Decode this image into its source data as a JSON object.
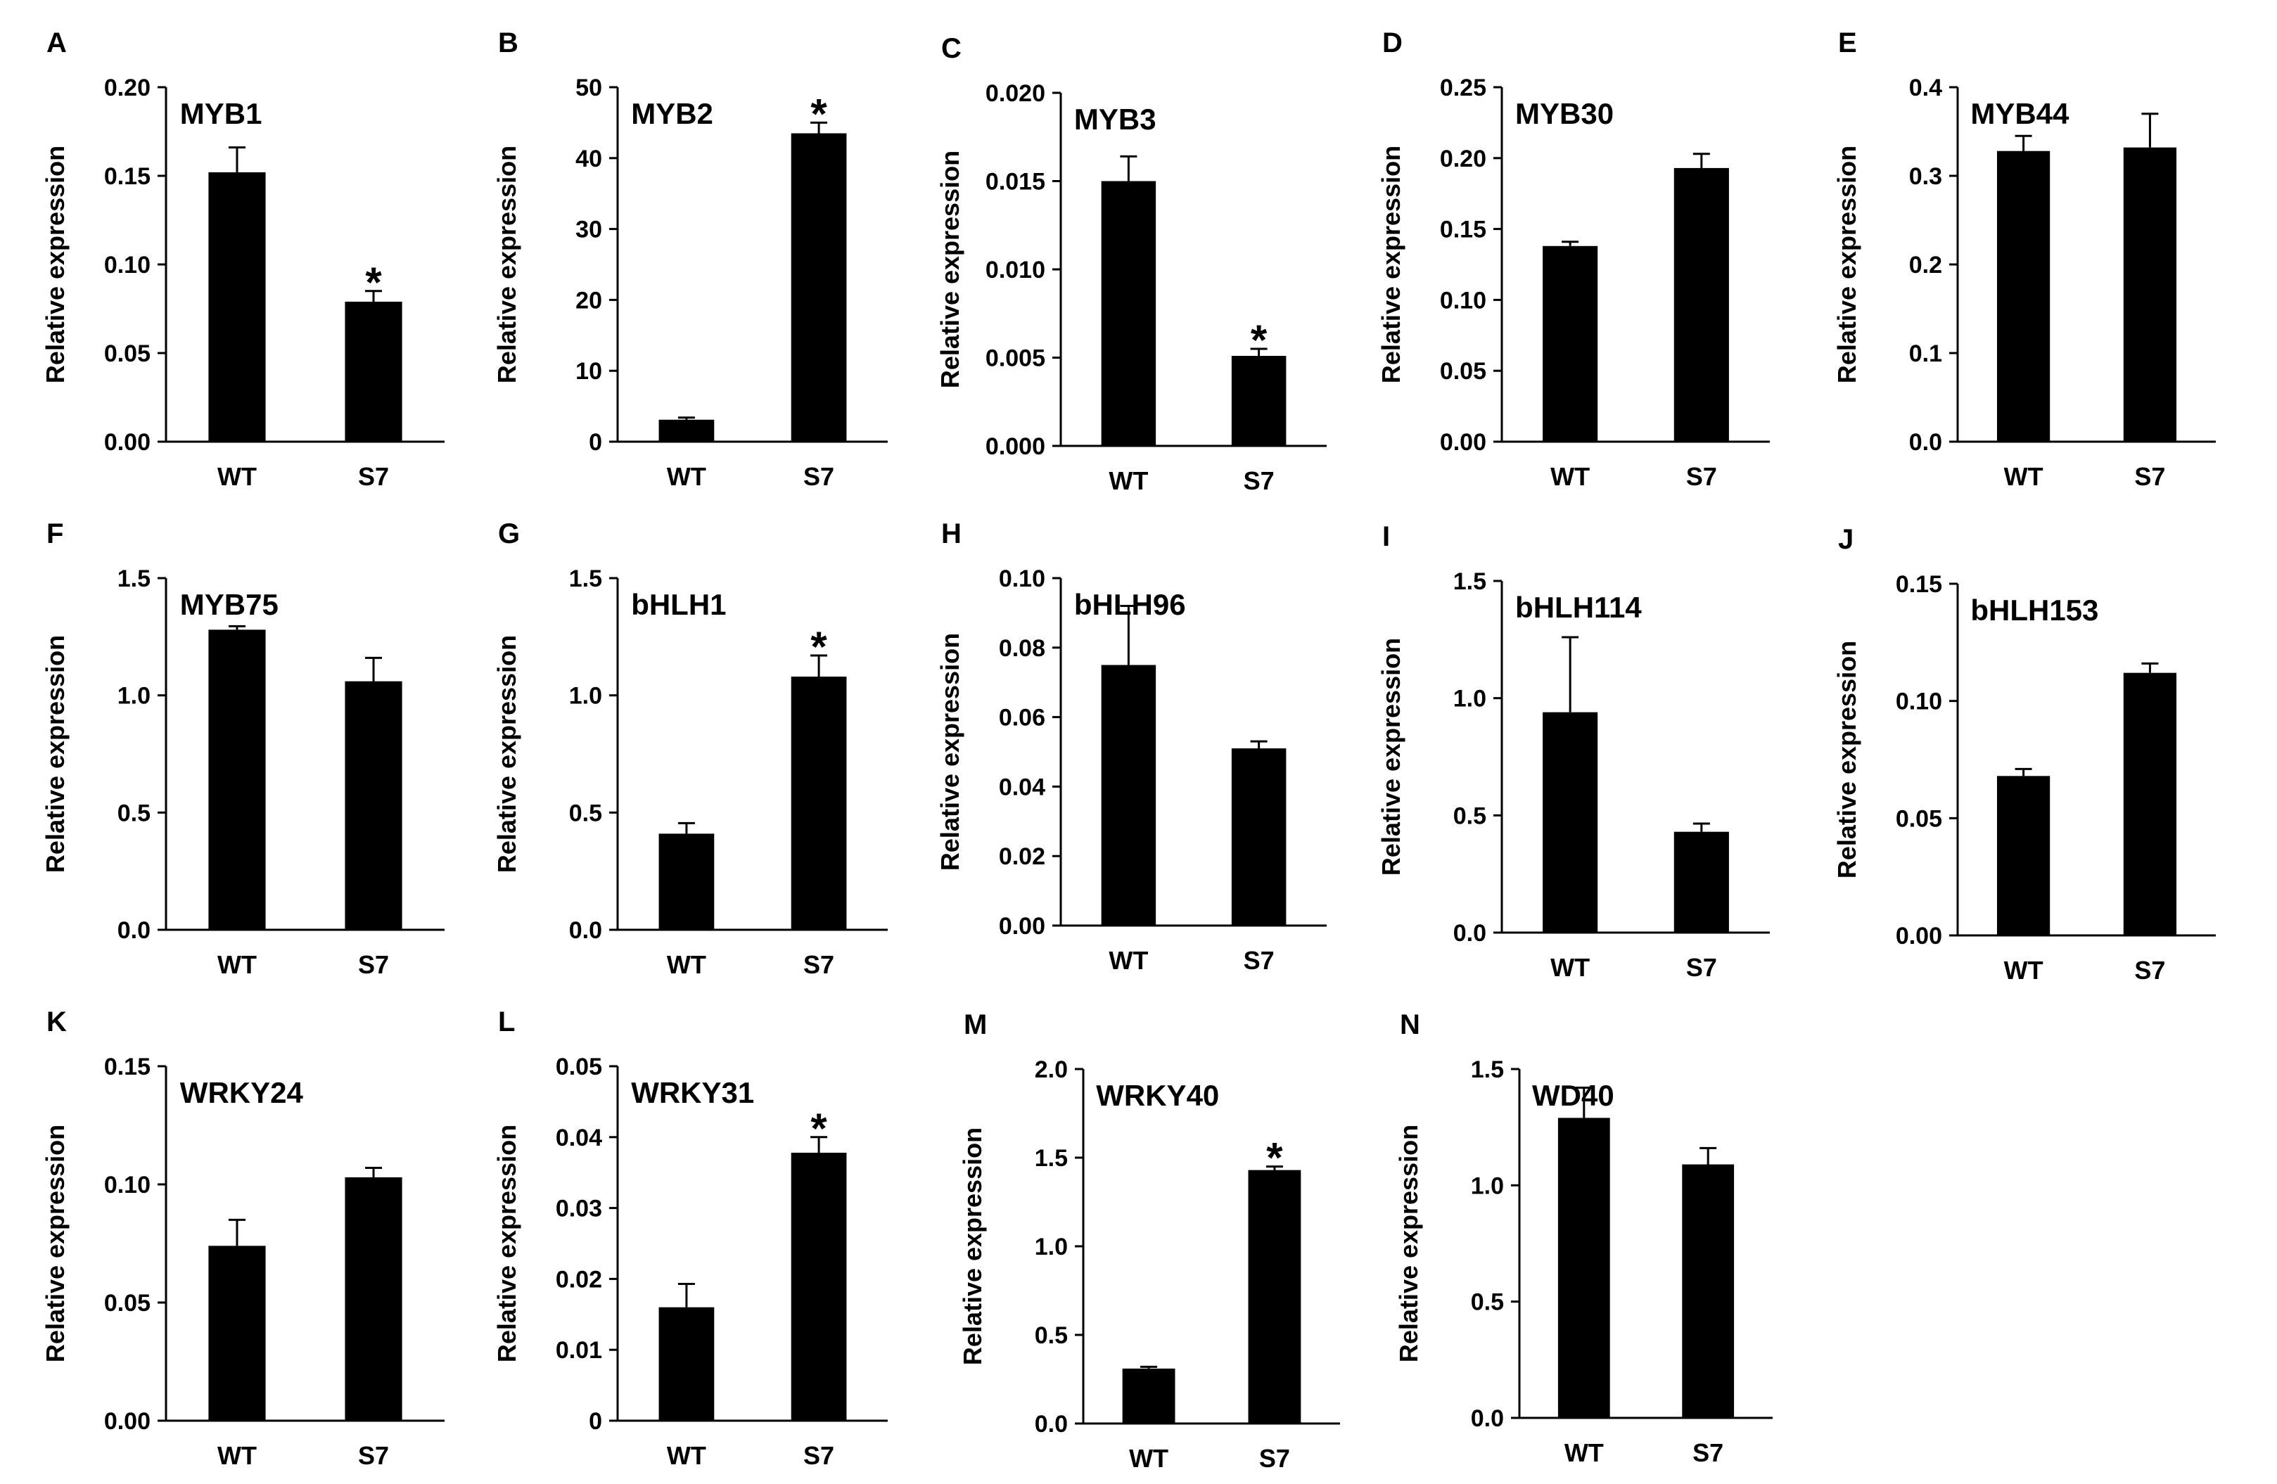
{
  "chart_data": [
    {
      "panel": "A",
      "type": "bar",
      "title": "MYB1",
      "ylabel": "Relative expression",
      "categories": [
        "WT",
        "S7"
      ],
      "values": [
        0.152,
        0.079
      ],
      "errors": [
        0.014,
        0.006
      ],
      "significant": [
        false,
        true
      ],
      "sig_marker": "*",
      "ylim": [
        0,
        0.2
      ],
      "yticks": [
        "0.00",
        "0.05",
        "0.10",
        "0.15",
        "0.20"
      ]
    },
    {
      "panel": "B",
      "type": "bar",
      "title": "MYB2",
      "ylabel": "Relative expression",
      "categories": [
        "WT",
        "S7"
      ],
      "values": [
        3.1,
        43.5
      ],
      "errors": [
        0.3,
        1.5
      ],
      "significant": [
        false,
        true
      ],
      "sig_marker": "*",
      "ylim": [
        0,
        50
      ],
      "yticks": [
        "0",
        "10",
        "20",
        "30",
        "40",
        "50"
      ]
    },
    {
      "panel": "C",
      "type": "bar",
      "title": "MYB3",
      "ylabel": "Relative expression",
      "categories": [
        "WT",
        "S7"
      ],
      "values": [
        0.015,
        0.0051
      ],
      "errors": [
        0.0014,
        0.0004
      ],
      "significant": [
        false,
        true
      ],
      "sig_marker": "*",
      "ylim": [
        0,
        0.02
      ],
      "yticks": [
        "0.000",
        "0.005",
        "0.010",
        "0.015",
        "0.020"
      ]
    },
    {
      "panel": "D",
      "type": "bar",
      "title": "MYB30",
      "ylabel": "Relative expression",
      "categories": [
        "WT",
        "S7"
      ],
      "values": [
        0.138,
        0.193
      ],
      "errors": [
        0.003,
        0.01
      ],
      "significant": [
        false,
        false
      ],
      "sig_marker": "*",
      "ylim": [
        0,
        0.25
      ],
      "yticks": [
        "0.00",
        "0.05",
        "0.10",
        "0.15",
        "0.20",
        "0.25"
      ]
    },
    {
      "panel": "E",
      "type": "bar",
      "title": "MYB44",
      "ylabel": "Relative expression",
      "categories": [
        "WT",
        "S7"
      ],
      "values": [
        0.328,
        0.332
      ],
      "errors": [
        0.017,
        0.038
      ],
      "significant": [
        false,
        false
      ],
      "sig_marker": "*",
      "ylim": [
        0,
        0.4
      ],
      "yticks": [
        "0.0",
        "0.1",
        "0.2",
        "0.3",
        "0.4"
      ]
    },
    {
      "panel": "F",
      "type": "bar",
      "title": "MYB75",
      "ylabel": "Relative expression",
      "categories": [
        "WT",
        "S7"
      ],
      "values": [
        1.28,
        1.06
      ],
      "errors": [
        0.015,
        0.1
      ],
      "significant": [
        false,
        false
      ],
      "sig_marker": "*",
      "ylim": [
        0,
        1.5
      ],
      "yticks": [
        "0.0",
        "0.5",
        "1.0",
        "1.5"
      ]
    },
    {
      "panel": "G",
      "type": "bar",
      "title": "bHLH1",
      "ylabel": "Relative expression",
      "categories": [
        "WT",
        "S7"
      ],
      "values": [
        0.41,
        1.08
      ],
      "errors": [
        0.045,
        0.09
      ],
      "significant": [
        false,
        true
      ],
      "sig_marker": "*",
      "ylim": [
        0,
        1.5
      ],
      "yticks": [
        "0.0",
        "0.5",
        "1.0",
        "1.5"
      ]
    },
    {
      "panel": "H",
      "type": "bar",
      "title": "bHLH96",
      "ylabel": "Relative expression",
      "categories": [
        "WT",
        "S7"
      ],
      "values": [
        0.075,
        0.051
      ],
      "errors": [
        0.017,
        0.002
      ],
      "significant": [
        false,
        false
      ],
      "sig_marker": "*",
      "ylim": [
        0,
        0.1
      ],
      "yticks": [
        "0.00",
        "0.02",
        "0.04",
        "0.06",
        "0.08",
        "0.10"
      ]
    },
    {
      "panel": "I",
      "type": "bar",
      "title": "bHLH114",
      "ylabel": "Relative expression",
      "categories": [
        "WT",
        "S7"
      ],
      "values": [
        0.94,
        0.43
      ],
      "errors": [
        0.32,
        0.035
      ],
      "significant": [
        false,
        false
      ],
      "sig_marker": "*",
      "ylim": [
        0,
        1.5
      ],
      "yticks": [
        "0.0",
        "0.5",
        "1.0",
        "1.5"
      ]
    },
    {
      "panel": "J",
      "type": "bar",
      "title": "bHLH153",
      "ylabel": "Relative expression",
      "categories": [
        "WT",
        "S7"
      ],
      "values": [
        0.068,
        0.112
      ],
      "errors": [
        0.003,
        0.004
      ],
      "significant": [
        false,
        false
      ],
      "sig_marker": "*",
      "ylim": [
        0,
        0.15
      ],
      "yticks": [
        "0.00",
        "0.05",
        "0.10",
        "0.15"
      ]
    },
    {
      "panel": "K",
      "type": "bar",
      "title": "WRKY24",
      "ylabel": "Relative expression",
      "categories": [
        "WT",
        "S7"
      ],
      "values": [
        0.074,
        0.103
      ],
      "errors": [
        0.011,
        0.004
      ],
      "significant": [
        false,
        false
      ],
      "sig_marker": "*",
      "ylim": [
        0,
        0.15
      ],
      "yticks": [
        "0.00",
        "0.05",
        "0.10",
        "0.15"
      ]
    },
    {
      "panel": "L",
      "type": "bar",
      "title": "WRKY31",
      "ylabel": "Relative expression",
      "categories": [
        "WT",
        "S7"
      ],
      "values": [
        0.016,
        0.0378
      ],
      "errors": [
        0.0033,
        0.0022
      ],
      "significant": [
        false,
        true
      ],
      "sig_marker": "*",
      "ylim": [
        0,
        0.05
      ],
      "yticks": [
        "0",
        "0.01",
        "0.02",
        "0.03",
        "0.04",
        "0.05"
      ]
    },
    {
      "panel": "M",
      "type": "bar",
      "title": "WRKY40",
      "ylabel": "Relative expression",
      "categories": [
        "WT",
        "S7"
      ],
      "values": [
        0.31,
        1.43
      ],
      "errors": [
        0.01,
        0.02
      ],
      "significant": [
        false,
        true
      ],
      "sig_marker": "*",
      "ylim": [
        0,
        2.0
      ],
      "yticks": [
        "0.0",
        "0.5",
        "1.0",
        "1.5",
        "2.0"
      ]
    },
    {
      "panel": "N",
      "type": "bar",
      "title": "WD40",
      "ylabel": "Relative expression",
      "categories": [
        "WT",
        "S7"
      ],
      "values": [
        1.29,
        1.09
      ],
      "errors": [
        0.13,
        0.07
      ],
      "significant": [
        false,
        false
      ],
      "sig_marker": "*",
      "ylim": [
        0,
        1.5
      ],
      "yticks": [
        "0.0",
        "0.5",
        "1.0",
        "1.5"
      ]
    }
  ]
}
